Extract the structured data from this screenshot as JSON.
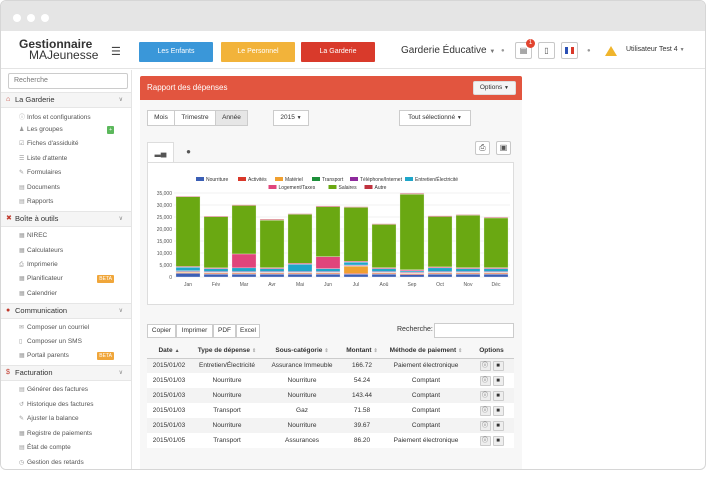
{
  "topbar": {
    "logo_line1": "Gestionnaire",
    "logo_line2": "MAJeunesse",
    "menu_icon": "hamburger-icon",
    "nav_buttons": [
      {
        "label": "Les Enfants",
        "color": "#3a97d9"
      },
      {
        "label": "Le Personnel",
        "color": "#f2b33a"
      },
      {
        "label": "La Garderie",
        "color": "#d93a2b"
      }
    ],
    "org_name": "Garderie Éducative",
    "notification_count": "1",
    "user_name": "Utilisateur Test 4"
  },
  "sidebar": {
    "search_placeholder": "Recherche",
    "sections": [
      {
        "title": "La Garderie",
        "icon": "home-icon",
        "items": [
          {
            "label": "Infos et configurations",
            "icon": "info-icon"
          },
          {
            "label": "Les groupes",
            "icon": "users-icon",
            "badge": "+"
          },
          {
            "label": "Fiches d'assiduité",
            "icon": "check-icon"
          },
          {
            "label": "Liste d'attente",
            "icon": "list-icon"
          },
          {
            "label": "Formulaires",
            "icon": "form-icon"
          },
          {
            "label": "Documents",
            "icon": "document-icon"
          },
          {
            "label": "Rapports",
            "icon": "report-icon"
          }
        ]
      },
      {
        "title": "Boîte à outils",
        "icon": "tools-icon",
        "items": [
          {
            "label": "NIREC",
            "icon": "grid-icon"
          },
          {
            "label": "Calculateurs",
            "icon": "calculator-icon"
          },
          {
            "label": "Imprimerie",
            "icon": "print-icon"
          },
          {
            "label": "Planificateur",
            "icon": "calendar-icon",
            "badge": "BETA"
          },
          {
            "label": "Calendrier",
            "icon": "calendar-icon"
          }
        ]
      },
      {
        "title": "Communication",
        "icon": "comment-icon",
        "items": [
          {
            "label": "Composer un courriel",
            "icon": "mail-icon"
          },
          {
            "label": "Composer un SMS",
            "icon": "phone-icon"
          },
          {
            "label": "Portail parents",
            "icon": "portal-icon",
            "badge": "BETA"
          }
        ]
      },
      {
        "title": "Facturation",
        "icon": "dollar-icon",
        "items": [
          {
            "label": "Générer des factures",
            "icon": "invoice-icon"
          },
          {
            "label": "Historique des factures",
            "icon": "history-icon"
          },
          {
            "label": "Ajuster la balance",
            "icon": "balance-icon"
          },
          {
            "label": "Registre de paiements",
            "icon": "register-icon"
          },
          {
            "label": "État de compte",
            "icon": "account-icon"
          },
          {
            "label": "Gestion des retards",
            "icon": "clock-icon"
          }
        ]
      }
    ]
  },
  "panel": {
    "title": "Rapport des dépenses",
    "options_label": "Options",
    "period_buttons": [
      "Mois",
      "Trimestre",
      "Année"
    ],
    "active_period": "Année",
    "year": "2015",
    "selection_label": "Tout sélectionné"
  },
  "chart_data": {
    "type": "bar",
    "stacked": true,
    "categories": [
      "Jan",
      "Fév",
      "Mar",
      "Avr",
      "Mai",
      "Jun",
      "Jul",
      "Aoû",
      "Sep",
      "Oct",
      "Nov",
      "Déc"
    ],
    "ylim": [
      0,
      35000
    ],
    "yticks": [
      0,
      5000,
      10000,
      15000,
      20000,
      25000,
      30000,
      35000
    ],
    "ytick_labels": [
      "0",
      "5,000",
      "10,000",
      "15,000",
      "20,000",
      "25,000",
      "30,000",
      "35,000"
    ],
    "legend_position": "top",
    "grid": true,
    "series": [
      {
        "name": "Nourriture",
        "color": "#3b5fb5",
        "values": [
          1500,
          1200,
          1200,
          1200,
          1200,
          1200,
          1200,
          1200,
          1000,
          1200,
          1200,
          1200
        ]
      },
      {
        "name": "Activités",
        "color": "#d9382a",
        "values": [
          300,
          300,
          300,
          300,
          300,
          300,
          300,
          300,
          300,
          300,
          300,
          300
        ]
      },
      {
        "name": "Matériel",
        "color": "#f0a030",
        "values": [
          300,
          300,
          300,
          300,
          300,
          300,
          3000,
          300,
          300,
          300,
          300,
          300
        ]
      },
      {
        "name": "Transport",
        "color": "#1d8f3a",
        "values": [
          200,
          200,
          200,
          200,
          200,
          200,
          200,
          200,
          200,
          200,
          200,
          200
        ]
      },
      {
        "name": "Téléphone/Internet",
        "color": "#8e2a9c",
        "values": [
          300,
          300,
          300,
          300,
          300,
          300,
          300,
          300,
          300,
          300,
          300,
          300
        ]
      },
      {
        "name": "Entretien/Électricité",
        "color": "#1fa6c9",
        "values": [
          1500,
          1200,
          1500,
          1200,
          3000,
          1200,
          1200,
          1200,
          500,
          1500,
          1200,
          1200
        ]
      },
      {
        "name": "Logement/Taxes",
        "color": "#e0457b",
        "values": [
          300,
          300,
          5800,
          400,
          400,
          5000,
          400,
          400,
          400,
          400,
          400,
          400
        ]
      },
      {
        "name": "Salaires",
        "color": "#6aa812",
        "values": [
          29000,
          21300,
          20200,
          19800,
          20400,
          20800,
          22400,
          18000,
          31500,
          21000,
          21800,
          20700
        ]
      },
      {
        "name": "Autre",
        "color": "#c0333f",
        "values": [
          300,
          300,
          300,
          300,
          300,
          300,
          300,
          300,
          300,
          300,
          300,
          300
        ]
      }
    ]
  },
  "table": {
    "tool_buttons": [
      "Copier",
      "Imprimer",
      "PDF",
      "Excel"
    ],
    "search_label": "Recherche:",
    "columns": [
      "Date",
      "Type de dépense",
      "Sous-catégorie",
      "Montant",
      "Méthode de paiement",
      "Options"
    ],
    "rows": [
      {
        "date": "2015/01/02",
        "type": "Entretien/Électricité",
        "sub": "Assurance Immeuble",
        "amount": "166.72",
        "method": "Paiement électronique"
      },
      {
        "date": "2015/01/03",
        "type": "Nourriture",
        "sub": "Nourriture",
        "amount": "54.24",
        "method": "Comptant"
      },
      {
        "date": "2015/01/03",
        "type": "Nourriture",
        "sub": "Nourriture",
        "amount": "143.44",
        "method": "Comptant"
      },
      {
        "date": "2015/01/03",
        "type": "Transport",
        "sub": "Gaz",
        "amount": "71.58",
        "method": "Comptant"
      },
      {
        "date": "2015/01/03",
        "type": "Nourriture",
        "sub": "Nourriture",
        "amount": "39.67",
        "method": "Comptant"
      },
      {
        "date": "2015/01/05",
        "type": "Transport",
        "sub": "Assurances",
        "amount": "86.20",
        "method": "Paiement électronique"
      }
    ]
  }
}
